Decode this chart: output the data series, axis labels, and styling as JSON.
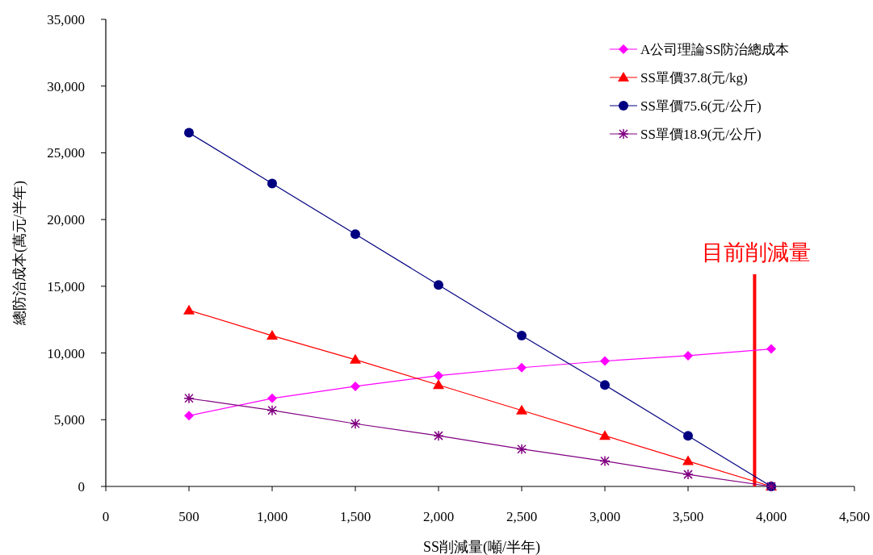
{
  "chart_data": {
    "type": "line",
    "xlabel": "SS削減量(噸/半年)",
    "ylabel": "總防治成本(萬元/半年)",
    "x": [
      500,
      1000,
      1500,
      2000,
      2500,
      3000,
      3500,
      4000
    ],
    "xlim": [
      0,
      4500
    ],
    "xticks": [
      0,
      500,
      {
        "value": 1000,
        "label": "1,000"
      },
      {
        "value": 1500,
        "label": "1,500"
      },
      {
        "value": 2000,
        "label": "2,000"
      },
      {
        "value": 2500,
        "label": "2,500"
      },
      {
        "value": 3000,
        "label": "3,000"
      },
      {
        "value": 3500,
        "label": "3,500"
      },
      {
        "value": 4000,
        "label": "4,000"
      },
      {
        "value": 4500,
        "label": "4,500"
      }
    ],
    "ylim": [
      0,
      35000
    ],
    "yticks": [
      0,
      {
        "value": 5000,
        "label": "5,000"
      },
      {
        "value": 10000,
        "label": "10,000"
      },
      {
        "value": 15000,
        "label": "15,000"
      },
      {
        "value": 20000,
        "label": "20,000"
      },
      {
        "value": 25000,
        "label": "25,000"
      },
      {
        "value": 30000,
        "label": "30,000"
      },
      {
        "value": 35000,
        "label": "35,000"
      }
    ],
    "series": [
      {
        "name": "A公司理論SS防治總成本",
        "color": "#ff00ff",
        "marker": "diamond",
        "values": [
          5300,
          6600,
          7500,
          8300,
          8900,
          9400,
          9800,
          10300
        ]
      },
      {
        "name": "SS單價37.8(元/kg)",
        "color": "#ff0000",
        "marker": "triangle",
        "values": [
          13200,
          11300,
          9500,
          7600,
          5700,
          3800,
          1900,
          0
        ]
      },
      {
        "name": "SS單價75.6(元/公斤)",
        "color": "#000080",
        "marker": "circle",
        "values": [
          26500,
          22700,
          18900,
          15100,
          11300,
          7600,
          3800,
          0
        ]
      },
      {
        "name": "SS單價18.9(元/公斤)",
        "color": "#800080",
        "marker": "cross",
        "values": [
          6600,
          5700,
          4700,
          3800,
          2800,
          1900,
          900,
          0
        ]
      }
    ],
    "ref_lines": [
      {
        "axis": "x",
        "value": 3900,
        "label": "目前削減量",
        "color": "#ff0000"
      }
    ],
    "legend": "top right",
    "grid": false,
    "line_style": "solid"
  }
}
